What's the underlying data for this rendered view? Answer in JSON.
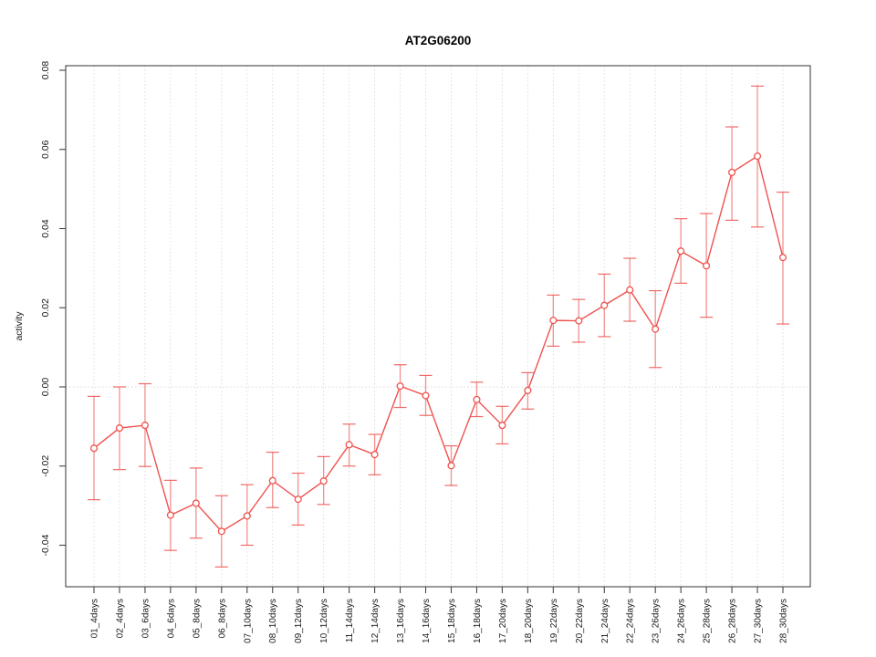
{
  "window": {
    "background": "#ffffff"
  },
  "chart_data": {
    "type": "line",
    "title": "AT2G06200",
    "xlabel": "",
    "ylabel": "activity",
    "legend_position": "none",
    "grid": {
      "vertical_dotted_at_each_category": true,
      "horizontal_dotted_at_zero": true
    },
    "ylim": [
      -0.0505,
      0.0811
    ],
    "yticks": [
      -0.04,
      -0.02,
      0.0,
      0.02,
      0.04,
      0.06,
      0.08
    ],
    "categories": [
      "01_4days",
      "02_4days",
      "03_6days",
      "04_6days",
      "05_8days",
      "06_8days",
      "07_10days",
      "08_10days",
      "09_12days",
      "10_12days",
      "11_14days",
      "12_14days",
      "13_16days",
      "14_16days",
      "15_18days",
      "16_18days",
      "17_20days",
      "18_20days",
      "19_22days",
      "20_22days",
      "21_24days",
      "22_24days",
      "23_26days",
      "24_26days",
      "25_28days",
      "26_28days",
      "27_30days",
      "28_30days"
    ],
    "series": [
      {
        "name": "activity",
        "marker": "open-circle",
        "values": [
          -0.0155,
          -0.0104,
          -0.0097,
          -0.0324,
          -0.0294,
          -0.0365,
          -0.0326,
          -0.0237,
          -0.0284,
          -0.0238,
          -0.0146,
          -0.0171,
          0.0002,
          -0.0022,
          -0.0199,
          -0.0032,
          -0.0097,
          -0.0009,
          0.0168,
          0.0167,
          0.0206,
          0.0245,
          0.0146,
          0.0343,
          0.0306,
          0.0542,
          0.0583,
          0.0327
        ],
        "upper_ci": [
          -0.0024,
          0.0,
          0.0008,
          -0.0236,
          -0.0205,
          -0.0275,
          -0.0247,
          -0.0165,
          -0.0218,
          -0.0176,
          -0.0094,
          -0.012,
          0.0056,
          0.0029,
          -0.0149,
          0.0012,
          -0.0049,
          0.0036,
          0.0232,
          0.0221,
          0.0285,
          0.0325,
          0.0243,
          0.0425,
          0.0438,
          0.0657,
          0.076,
          0.0492
        ],
        "lower_ci": [
          -0.0285,
          -0.0209,
          -0.0201,
          -0.0413,
          -0.0382,
          -0.0455,
          -0.04,
          -0.0305,
          -0.0349,
          -0.0297,
          -0.02,
          -0.0222,
          -0.0052,
          -0.0072,
          -0.0249,
          -0.0075,
          -0.0144,
          -0.0056,
          0.0103,
          0.0113,
          0.0127,
          0.0166,
          0.0049,
          0.0262,
          0.0176,
          0.0421,
          0.0404,
          0.0159
        ]
      }
    ],
    "colors": {
      "series": "#ef524e",
      "error_bar": "#f2918e",
      "grid": "#d9d9d9",
      "box": "#454545",
      "tick": "#454545",
      "text": "#1a1a1a",
      "background": "#ffffff"
    }
  }
}
